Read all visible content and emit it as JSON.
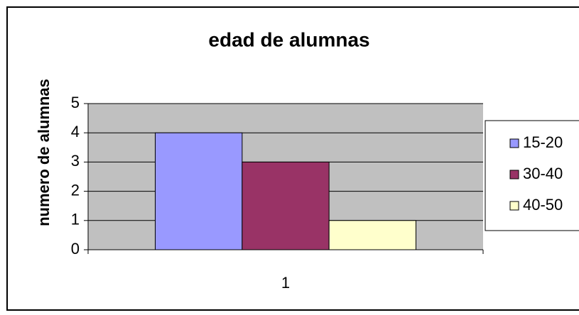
{
  "chart_data": {
    "type": "bar",
    "title": "edad de alumnas",
    "y_label": "numero de alumnas",
    "categories": [
      "1"
    ],
    "series": [
      {
        "name": "15-20",
        "color": "#9999ff",
        "values": [
          4
        ]
      },
      {
        "name": "30-40",
        "color": "#993366",
        "values": [
          3
        ]
      },
      {
        "name": "40-50",
        "color": "#ffffcc",
        "values": [
          1
        ]
      }
    ],
    "ylim": [
      0,
      5
    ],
    "yticks": [
      0,
      1,
      2,
      3,
      4,
      5
    ],
    "grid": true,
    "plot_background": "#c0c0c0",
    "legend": "right"
  }
}
